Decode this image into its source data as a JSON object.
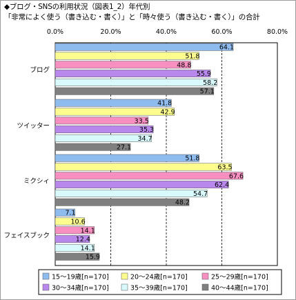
{
  "title_line1": "◆ブログ・SNSの利用状況（図表1_2）年代別",
  "title_line2": "「非常によく使う（書き込む・書く）」と「時々使う（書き込む・書く）」の合計",
  "chart_data": {
    "type": "bar",
    "orientation": "horizontal",
    "categories": [
      "ブログ",
      "ツイッター",
      "ミクシィ",
      "フェイスブック"
    ],
    "xlim": [
      0,
      80
    ],
    "tick_values": [
      0,
      20,
      40,
      60,
      80
    ],
    "tick_labels": [
      "0.0%",
      "20.0%",
      "40.0%",
      "60.0%",
      "80.0%"
    ],
    "grid": "vertical dashed",
    "legend_position": "bottom",
    "series": [
      {
        "name": "15～19歳[n=170]",
        "color": "#8fbcef",
        "values": [
          64.1,
          41.8,
          51.8,
          7.1
        ]
      },
      {
        "name": "20～24歳[n=170]",
        "color": "#fdfd8f",
        "values": [
          51.8,
          42.9,
          63.5,
          10.6
        ]
      },
      {
        "name": "25～29歳[n=170]",
        "color": "#f88fc1",
        "values": [
          48.8,
          33.5,
          67.6,
          14.1
        ]
      },
      {
        "name": "30～34歳[n=170]",
        "color": "#b988ec",
        "values": [
          55.9,
          35.3,
          62.4,
          12.4
        ]
      },
      {
        "name": "35～39歳[n=170]",
        "color": "#d8fafd",
        "values": [
          58.2,
          34.7,
          54.7,
          14.1
        ]
      },
      {
        "name": "40～44歳[n=170]",
        "color": "#808080",
        "values": [
          57.1,
          27.1,
          48.2,
          15.9
        ]
      }
    ]
  }
}
